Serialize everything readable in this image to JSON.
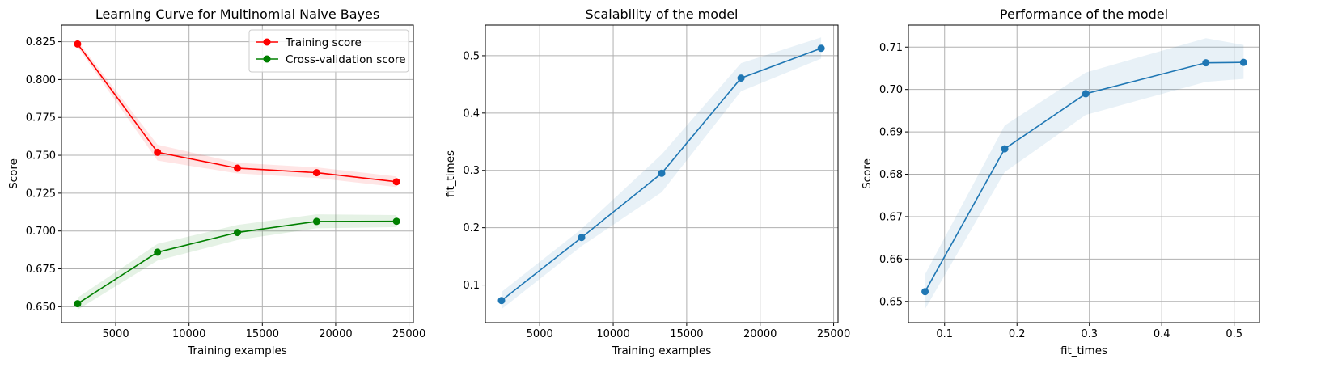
{
  "chart_data": [
    {
      "type": "line",
      "title": "Learning Curve for Multinomial Naive Bayes",
      "xlabel": "Training examples",
      "ylabel": "Score",
      "xlim": [
        1300,
        25300
      ],
      "ylim": [
        0.6395,
        0.836
      ],
      "xticks": [
        5000,
        10000,
        15000,
        20000,
        25000
      ],
      "xtick_labels": [
        "5000",
        "10000",
        "15000",
        "20000",
        "25000"
      ],
      "yticks": [
        0.65,
        0.675,
        0.7,
        0.725,
        0.75,
        0.775,
        0.8,
        0.825
      ],
      "ytick_labels": [
        "0.650",
        "0.675",
        "0.700",
        "0.725",
        "0.750",
        "0.775",
        "0.800",
        "0.825"
      ],
      "grid": true,
      "legend": "top-right",
      "x": [
        2400,
        7850,
        13300,
        18700,
        24150
      ],
      "series": [
        {
          "name": "Training score",
          "color": "#ff0000",
          "values": [
            0.8235,
            0.752,
            0.7415,
            0.7385,
            0.7325
          ],
          "band_lower": [
            0.8215,
            0.7465,
            0.738,
            0.735,
            0.729
          ],
          "band_upper": [
            0.8255,
            0.757,
            0.745,
            0.742,
            0.736
          ]
        },
        {
          "name": "Cross-validation score",
          "color": "#008000",
          "values": [
            0.652,
            0.686,
            0.699,
            0.7063,
            0.7064
          ],
          "band_lower": [
            0.648,
            0.6805,
            0.694,
            0.7018,
            0.7025
          ],
          "band_upper": [
            0.656,
            0.6915,
            0.704,
            0.711,
            0.7105
          ]
        }
      ]
    },
    {
      "type": "line",
      "title": "Scalability of the model",
      "xlabel": "Training examples",
      "ylabel": "fit_times",
      "xlim": [
        1300,
        25300
      ],
      "ylim": [
        0.0345,
        0.5535
      ],
      "xticks": [
        5000,
        10000,
        15000,
        20000,
        25000
      ],
      "xtick_labels": [
        "5000",
        "10000",
        "15000",
        "20000",
        "25000"
      ],
      "yticks": [
        0.1,
        0.2,
        0.3,
        0.4,
        0.5
      ],
      "ytick_labels": [
        "0.1",
        "0.2",
        "0.3",
        "0.4",
        "0.5"
      ],
      "grid": true,
      "x": [
        2400,
        7850,
        13300,
        18700,
        24150
      ],
      "series": [
        {
          "color": "#1f77b4",
          "values": [
            0.073,
            0.183,
            0.295,
            0.461,
            0.513
          ],
          "band_lower": [
            0.058,
            0.168,
            0.262,
            0.438,
            0.495
          ],
          "band_upper": [
            0.088,
            0.198,
            0.328,
            0.487,
            0.532
          ]
        }
      ]
    },
    {
      "type": "line",
      "title": "Performance of the model",
      "xlabel": "fit_times",
      "ylabel": "Score",
      "xlim": [
        0.05,
        0.535
      ],
      "ylim": [
        0.645,
        0.7152
      ],
      "xticks": [
        0.1,
        0.2,
        0.3,
        0.4,
        0.5
      ],
      "xtick_labels": [
        "0.1",
        "0.2",
        "0.3",
        "0.4",
        "0.5"
      ],
      "yticks": [
        0.65,
        0.66,
        0.67,
        0.68,
        0.69,
        0.7,
        0.71
      ],
      "ytick_labels": [
        "0.65",
        "0.66",
        "0.67",
        "0.68",
        "0.69",
        "0.70",
        "0.71"
      ],
      "grid": true,
      "x": [
        0.073,
        0.183,
        0.295,
        0.461,
        0.513
      ],
      "series": [
        {
          "color": "#1f77b4",
          "values": [
            0.6523,
            0.686,
            0.699,
            0.7063,
            0.7064
          ],
          "band_lower": [
            0.6482,
            0.6805,
            0.694,
            0.7018,
            0.7025
          ],
          "band_upper": [
            0.6564,
            0.6915,
            0.704,
            0.7121,
            0.7105
          ]
        }
      ]
    }
  ]
}
